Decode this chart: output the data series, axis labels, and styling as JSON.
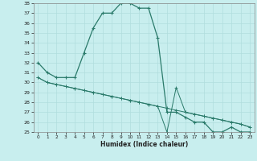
{
  "xlabel": "Humidex (Indice chaleur)",
  "ylabel": "",
  "bg_color": "#c8eeee",
  "grid_color": "#b0dddd",
  "line_color": "#2a7a6a",
  "x_data": [
    0,
    1,
    2,
    3,
    4,
    5,
    6,
    7,
    8,
    9,
    10,
    11,
    12,
    13,
    14,
    15,
    16,
    17,
    18,
    19,
    20,
    21,
    22,
    23
  ],
  "series1": [
    32,
    31,
    30.5,
    30.5,
    30.5,
    33,
    35.5,
    37,
    37,
    38,
    38,
    37.5,
    37.5,
    34.5,
    27,
    27,
    26.5,
    26,
    26,
    25,
    25,
    25.5,
    25,
    25
  ],
  "series2": [
    30.5,
    30.0,
    29.8,
    29.6,
    29.4,
    29.2,
    29.0,
    28.8,
    28.6,
    28.4,
    28.2,
    28.0,
    27.8,
    27.6,
    27.4,
    27.2,
    27.0,
    26.8,
    26.6,
    26.4,
    26.2,
    26.0,
    25.8,
    25.5
  ],
  "series3": [
    30.5,
    30.0,
    29.8,
    29.6,
    29.4,
    29.2,
    29.0,
    28.8,
    28.6,
    28.4,
    28.2,
    28.0,
    27.8,
    27.6,
    25.0,
    29.5,
    27.0,
    26.8,
    26.6,
    26.4,
    26.2,
    26.0,
    25.8,
    25.5
  ],
  "ylim": [
    25,
    38
  ],
  "xlim": [
    -0.5,
    23.5
  ],
  "yticks": [
    25,
    26,
    27,
    28,
    29,
    30,
    31,
    32,
    33,
    34,
    35,
    36,
    37,
    38
  ],
  "xticks": [
    0,
    1,
    2,
    3,
    4,
    5,
    6,
    7,
    8,
    9,
    10,
    11,
    12,
    13,
    14,
    15,
    16,
    17,
    18,
    19,
    20,
    21,
    22,
    23
  ]
}
